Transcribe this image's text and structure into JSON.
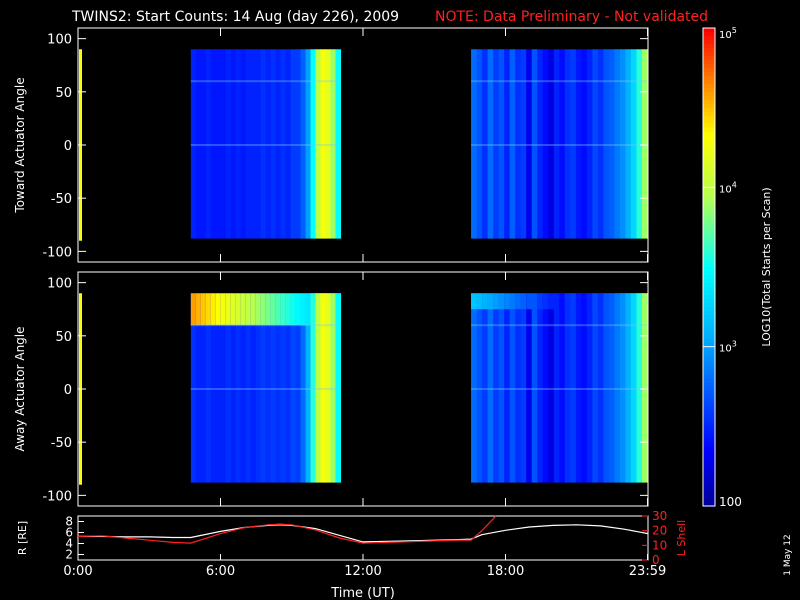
{
  "title": "TWINS2: Start Counts: 14 Aug (day 226), 2009",
  "note": "NOTE: Data Preliminary - Not validated",
  "date_stamp": "1 May 12",
  "colors": {
    "background": "#000000",
    "frame": "#ffffff",
    "note": "#ff2020",
    "lshell": "#ff2020",
    "radius_line": "#ffffff"
  },
  "chart_data": [
    {
      "type": "heatmap",
      "ylabel": "Toward Actuator Angle",
      "ylim": [
        -110,
        110
      ],
      "yticks": [
        -100,
        -50,
        0,
        50,
        100
      ],
      "xlim": [
        0,
        24
      ],
      "blocks": [
        {
          "x0": 4.75,
          "x1": 11.05,
          "y0": -88,
          "y1": 90,
          "base_log": 2.55,
          "column_log": [
            2.5,
            2.45,
            2.45,
            2.5,
            2.45,
            2.45,
            2.45,
            2.5,
            2.45,
            2.5,
            2.45,
            2.5,
            2.5,
            2.5,
            2.55,
            2.5,
            2.55,
            2.5,
            2.55,
            2.5,
            2.6,
            2.6,
            2.75,
            3.0,
            3.5,
            4.0,
            4.3,
            4.2,
            3.9,
            3.5
          ]
        },
        {
          "x0": 16.55,
          "x1": 23.98,
          "y0": -88,
          "y1": 90,
          "base_log": 2.6,
          "column_log": [
            2.8,
            2.7,
            2.55,
            2.8,
            2.6,
            2.7,
            2.5,
            2.75,
            2.55,
            2.6,
            2.3,
            2.7,
            2.5,
            2.4,
            2.25,
            2.5,
            2.4,
            2.55,
            2.6,
            2.45,
            2.4,
            2.5,
            2.65,
            2.55,
            2.7,
            2.75,
            2.85,
            2.95,
            3.1,
            3.3,
            3.6,
            3.9
          ]
        }
      ]
    },
    {
      "type": "heatmap",
      "ylabel": "Away Actuator Angle",
      "ylim": [
        -110,
        110
      ],
      "yticks": [
        -100,
        -50,
        0,
        50,
        100
      ],
      "xlim": [
        0,
        24
      ],
      "blocks": [
        {
          "x0": 4.75,
          "x1": 11.05,
          "y0": -88,
          "y1": 90,
          "base_log": 2.55,
          "column_log": [
            2.55,
            2.5,
            2.5,
            2.55,
            2.5,
            2.5,
            2.5,
            2.55,
            2.5,
            2.55,
            2.5,
            2.55,
            2.5,
            2.55,
            2.6,
            2.55,
            2.6,
            2.55,
            2.6,
            2.55,
            2.65,
            2.6,
            2.8,
            3.1,
            3.6,
            4.0,
            4.3,
            4.2,
            3.9,
            3.5
          ],
          "band": {
            "y0": 60,
            "y1": 90,
            "peak_log": 4.6
          }
        },
        {
          "x0": 16.55,
          "x1": 23.98,
          "y0": -88,
          "y1": 90,
          "base_log": 2.6,
          "column_log": [
            2.8,
            2.7,
            2.6,
            2.8,
            2.6,
            2.7,
            2.5,
            2.7,
            2.55,
            2.6,
            2.3,
            2.7,
            2.5,
            2.4,
            2.25,
            2.5,
            2.4,
            2.55,
            2.6,
            2.45,
            2.4,
            2.5,
            2.65,
            2.55,
            2.7,
            2.75,
            2.85,
            2.95,
            3.1,
            3.3,
            3.6,
            3.9
          ],
          "band": {
            "y0": 75,
            "y1": 90,
            "peak_log": 3.2
          }
        }
      ]
    },
    {
      "type": "line",
      "xlabel": "Time (UT)",
      "xlim": [
        0,
        24
      ],
      "xticks": [
        0,
        6,
        12,
        18,
        23.98
      ],
      "xtick_labels": [
        "0:00",
        "6:00",
        "12:00",
        "18:00",
        "23:59"
      ],
      "left_axis": {
        "label": "R [RE]",
        "ylim": [
          1,
          9
        ],
        "ticks": [
          2,
          4,
          6,
          8
        ]
      },
      "right_axis": {
        "label": "L Shell",
        "ylim": [
          0,
          30
        ],
        "ticks": [
          0,
          10,
          20,
          30
        ]
      },
      "series": [
        {
          "axis": "left",
          "color": "#ffffff",
          "x": [
            0,
            1,
            2,
            3,
            4,
            4.75,
            6,
            7,
            8,
            8.5,
            9,
            10,
            11,
            12,
            13,
            14,
            15,
            16,
            16.55,
            17,
            18,
            19,
            20,
            21,
            22,
            23,
            24
          ],
          "y": [
            5.3,
            5.3,
            5.2,
            5.2,
            5.1,
            5.1,
            6.2,
            6.9,
            7.3,
            7.4,
            7.3,
            6.7,
            5.5,
            4.3,
            4.4,
            4.5,
            4.6,
            4.7,
            4.8,
            5.6,
            6.4,
            7.0,
            7.3,
            7.4,
            7.2,
            6.6,
            5.8
          ]
        },
        {
          "axis": "right",
          "color": "#ff2020",
          "x": [
            0,
            1,
            2,
            3,
            4,
            4.75,
            6,
            7,
            8,
            8.5,
            9,
            10,
            11,
            12,
            13,
            14,
            15,
            16,
            16.55,
            17,
            17.6
          ],
          "y": [
            16,
            16.5,
            15,
            13.5,
            12,
            11.5,
            18,
            22,
            24,
            24.5,
            24,
            20.5,
            15,
            11.5,
            12,
            12.5,
            13,
            13.5,
            13.5,
            20,
            30
          ]
        }
      ]
    },
    {
      "type": "heatmap",
      "ylabel": "LOG10(Total Starts per Scan)",
      "colorbar": true,
      "log_range": [
        2,
        5
      ],
      "ticks": [
        {
          "log": 5,
          "label": "10",
          "sup": "5"
        },
        {
          "log": 4,
          "label": "10",
          "sup": "4"
        },
        {
          "log": 3,
          "label": "10",
          "sup": "3"
        },
        {
          "log": 2,
          "label": "100",
          "sup": ""
        }
      ]
    }
  ]
}
